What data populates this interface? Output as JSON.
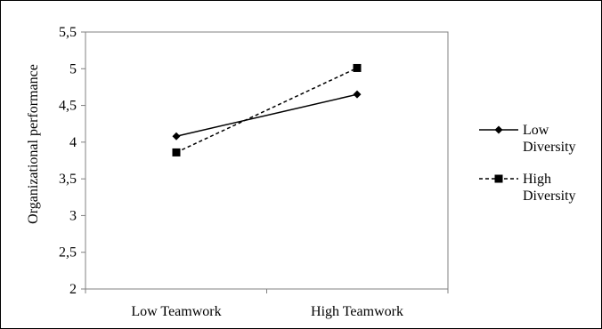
{
  "chart_data": {
    "type": "line",
    "categories": [
      "Low Teamwork",
      "High Teamwork"
    ],
    "series": [
      {
        "name": "Low Diversity",
        "values": [
          4.08,
          4.65
        ],
        "line_style": "solid",
        "marker": "diamond"
      },
      {
        "name": "High Diversity",
        "values": [
          3.86,
          5.01
        ],
        "line_style": "dashed",
        "marker": "square"
      }
    ],
    "title": "",
    "xlabel": "",
    "ylabel": "Organizational performance",
    "ylim": [
      2,
      5.5
    ],
    "yticks": [
      "2",
      "2,5",
      "3",
      "3,5",
      "4",
      "4,5",
      "5",
      "5,5"
    ],
    "grid": false,
    "legend_position": "right",
    "colors": {
      "line": "#000000",
      "frame": "#808080"
    }
  }
}
